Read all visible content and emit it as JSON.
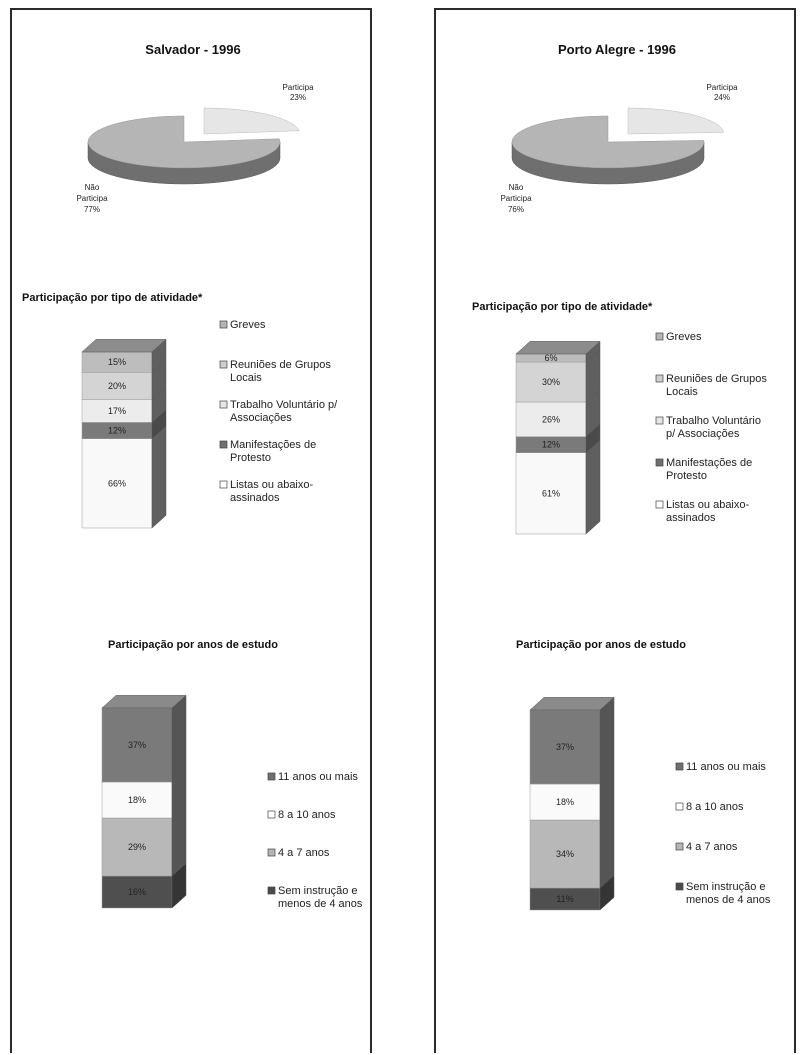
{
  "colors": {
    "dark": "#6f6f6f",
    "darker": "#4a4a4a",
    "mid": "#b5b5b5",
    "light": "#dcdcdc",
    "lighter": "#ececec",
    "white": "#f7f7f7",
    "border": "#2b2b2b"
  },
  "chart_data": [
    {
      "type": "pie",
      "title": "Salvador - 1996",
      "slices": [
        {
          "label": "Participa",
          "value": 23,
          "text": "23%"
        },
        {
          "label": "Não Participa",
          "value": 77,
          "text": "77%"
        }
      ]
    },
    {
      "type": "bar",
      "stacked": true,
      "title": "Participação por tipo de atividade*",
      "categories": [
        "Salvador - 1996"
      ],
      "series": [
        {
          "name": "Listas ou abaixo-assinados",
          "values": [
            66
          ],
          "text": "66%"
        },
        {
          "name": "Manifestações de Protesto",
          "values": [
            12
          ],
          "text": "12%"
        },
        {
          "name": "Trabalho Voluntário p/ Associações",
          "values": [
            17
          ],
          "text": "17%"
        },
        {
          "name": "Reuniões de Grupos Locais",
          "values": [
            20
          ],
          "text": "20%"
        },
        {
          "name": "Greves",
          "values": [
            15
          ],
          "text": "15%"
        }
      ]
    },
    {
      "type": "bar",
      "stacked": true,
      "title": "Participação por anos de estudo",
      "categories": [
        "Salvador - 1996"
      ],
      "series": [
        {
          "name": "Sem instrução e menos de 4 anos",
          "values": [
            16
          ],
          "text": "16%"
        },
        {
          "name": "4 a 7 anos",
          "values": [
            29
          ],
          "text": "29%"
        },
        {
          "name": "8 a 10 anos",
          "values": [
            18
          ],
          "text": "18%"
        },
        {
          "name": "11 anos ou mais",
          "values": [
            37
          ],
          "text": "37%"
        }
      ]
    },
    {
      "type": "pie",
      "title": "Porto Alegre - 1996",
      "slices": [
        {
          "label": "Participa",
          "value": 24,
          "text": "24%"
        },
        {
          "label": "Não Participa",
          "value": 76,
          "text": "76%"
        }
      ]
    },
    {
      "type": "bar",
      "stacked": true,
      "title": "Participação por tipo de atividade*",
      "categories": [
        "Porto Alegre - 1996"
      ],
      "series": [
        {
          "name": "Listas ou abaixo-assinados",
          "values": [
            61
          ],
          "text": "61%"
        },
        {
          "name": "Manifestações de Protesto",
          "values": [
            12
          ],
          "text": "12%"
        },
        {
          "name": "Trabalho Voluntário p/ Associações",
          "values": [
            26
          ],
          "text": "26%"
        },
        {
          "name": "Reuniões de Grupos Locais",
          "values": [
            30
          ],
          "text": "30%"
        },
        {
          "name": "Greves",
          "values": [
            6
          ],
          "text": "6%"
        }
      ]
    },
    {
      "type": "bar",
      "stacked": true,
      "title": "Participação por anos de estudo",
      "categories": [
        "Porto Alegre - 1996"
      ],
      "series": [
        {
          "name": "Sem instrução e menos de 4 anos",
          "values": [
            11
          ],
          "text": "11%"
        },
        {
          "name": "4 a 7 anos",
          "values": [
            34
          ],
          "text": "34%"
        },
        {
          "name": "8 a 10 anos",
          "values": [
            18
          ],
          "text": "18%"
        },
        {
          "name": "11 anos ou mais",
          "values": [
            37
          ],
          "text": "37%"
        }
      ]
    }
  ],
  "legends": {
    "activity": [
      {
        "line1": "Greves",
        "line2": "",
        "color": "#b5b5b5"
      },
      {
        "line1": "Reuniões de Grupos",
        "line2": "Locais",
        "color": "#cfcfcf"
      },
      {
        "line1": "Trabalho Voluntário p/",
        "line2": "Associações",
        "color": "#e6e6e6"
      },
      {
        "line1": "Manifestações de",
        "line2": "Protesto",
        "color": "#6f6f6f"
      },
      {
        "line1": "Listas ou abaixo-",
        "line2": "assinados",
        "color": "#ffffff"
      }
    ],
    "activity_pa": [
      {
        "line1": "Greves",
        "line2": "",
        "color": "#b5b5b5"
      },
      {
        "line1": "Reuniões de Grupos",
        "line2": "Locais",
        "color": "#cfcfcf"
      },
      {
        "line1": "Trabalho Voluntário",
        "line2": "p/ Associações",
        "color": "#e6e6e6"
      },
      {
        "line1": "Manifestações de",
        "line2": "Protesto",
        "color": "#6f6f6f"
      },
      {
        "line1": "Listas ou abaixo-",
        "line2": "assinados",
        "color": "#ffffff"
      }
    ],
    "education": [
      {
        "line1": "11 anos ou mais",
        "line2": "",
        "color": "#6f6f6f"
      },
      {
        "line1": "8 a 10 anos",
        "line2": "",
        "color": "#ffffff"
      },
      {
        "line1": "4 a 7 anos",
        "line2": "",
        "color": "#b5b5b5"
      },
      {
        "line1": "Sem instrução e",
        "line2": "menos de 4 anos",
        "color": "#4a4a4a"
      }
    ]
  }
}
